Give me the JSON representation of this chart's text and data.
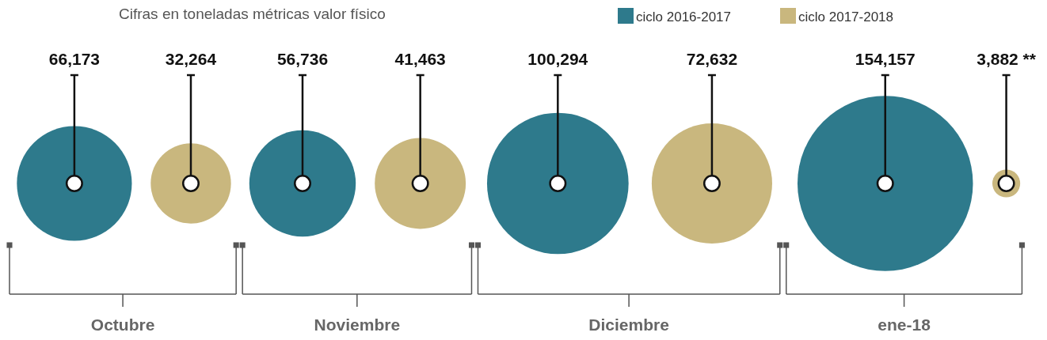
{
  "chart_data": {
    "type": "other",
    "title": "Cifras en toneladas métricas valor físico",
    "categories": [
      "Octubre",
      "Noviembre",
      "Diciembre",
      "ene-18"
    ],
    "legend": "top right",
    "data_labels": true,
    "series": [
      {
        "name": "ciclo 2016-2017",
        "color": "#2e7a8c",
        "values": [
          66173,
          56736,
          100294,
          154157
        ],
        "value_labels": [
          "66,173",
          "56,736",
          "100,294",
          "154,157"
        ]
      },
      {
        "name": "ciclo 2017-2018",
        "color": "#c9b77e",
        "values": [
          32264,
          41463,
          72632,
          3882
        ],
        "value_labels": [
          "32,264",
          "41,463",
          "72,632",
          "3,882 **"
        ]
      }
    ]
  }
}
